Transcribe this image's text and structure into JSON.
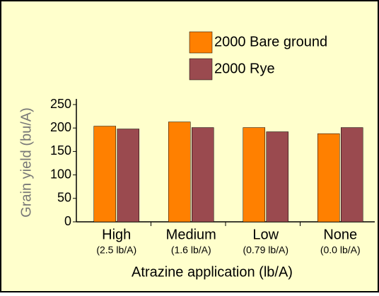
{
  "chart_data": {
    "type": "bar",
    "categories": [
      "High",
      "Medium",
      "Low",
      "None"
    ],
    "category_sublabels": [
      "(2.5 lb/A)",
      "(1.6 lb/A)",
      "(0.79 lb/A)",
      "(0.0 lb/A)"
    ],
    "series": [
      {
        "name": "2000 Bare ground",
        "color": "#ff8000",
        "values": [
          204,
          213,
          201,
          188
        ]
      },
      {
        "name": "2000 Rye",
        "color": "#9a4a4f",
        "values": [
          198,
          201,
          192,
          201
        ]
      }
    ],
    "y_label": "Grain yield (bu/A)",
    "x_label": "Atrazine application (lb/A)",
    "ylim": [
      0,
      250
    ],
    "yticks": [
      0,
      50,
      100,
      150,
      200,
      250
    ]
  }
}
